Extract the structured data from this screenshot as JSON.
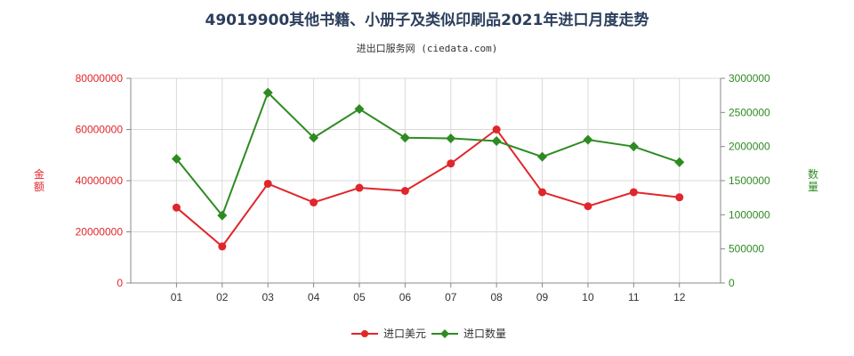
{
  "chart_data": {
    "type": "line",
    "title": "49019900其他书籍、小册子及类似印刷品2021年进口月度走势",
    "subtitle": "进出口服务网 (ciedata.com)",
    "categories": [
      "01",
      "02",
      "03",
      "04",
      "05",
      "06",
      "07",
      "08",
      "09",
      "10",
      "11",
      "12"
    ],
    "y_left": {
      "label": "金额",
      "range": [
        0,
        80000000
      ],
      "ticks": [
        0,
        20000000,
        40000000,
        60000000,
        80000000
      ],
      "tick_labels": [
        "0",
        "20000000",
        "40000000",
        "60000000",
        "80000000"
      ],
      "color": "#e0262b"
    },
    "y_right": {
      "label": "数量",
      "range": [
        0,
        3000000
      ],
      "ticks": [
        0,
        500000,
        1000000,
        1500000,
        2000000,
        2500000,
        3000000
      ],
      "tick_labels": [
        "0",
        "500000",
        "1000000",
        "1500000",
        "2000000",
        "2500000",
        "3000000"
      ],
      "color": "#2e8b22"
    },
    "series": [
      {
        "name": "进口美元",
        "axis": "left",
        "color": "#e0262b",
        "marker": "circle",
        "values": [
          29500000,
          14300000,
          38800000,
          31500000,
          37200000,
          36000000,
          46700000,
          60000000,
          35500000,
          30000000,
          35500000,
          33500000
        ]
      },
      {
        "name": "进口数量",
        "axis": "right",
        "color": "#2e8b22",
        "marker": "diamond",
        "values": [
          1820000,
          990000,
          2790000,
          2130000,
          2550000,
          2130000,
          2120000,
          2080000,
          1850000,
          2100000,
          2000000,
          1770000
        ]
      }
    ],
    "grid": true,
    "legend_position": "bottom-center"
  }
}
